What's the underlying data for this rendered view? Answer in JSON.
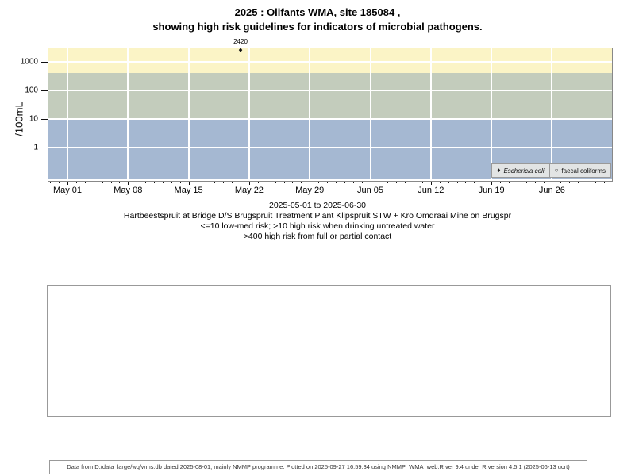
{
  "title": {
    "line1": "2025 : Olifants WMA, site 185084 ,",
    "line2": "showing high risk guidelines for indicators of microbial pathogens."
  },
  "chart_data": {
    "type": "scatter",
    "y_scale": "log10",
    "ylabel": "/100mL",
    "y_ticks": [
      1,
      10,
      100,
      1000
    ],
    "x_tick_labels": [
      "May 01",
      "May 08",
      "May 15",
      "May 22",
      "May 29",
      "Jun 05",
      "Jun 12",
      "Jun 19",
      "Jun 26"
    ],
    "x_minor_tick_interval_days": 1,
    "grid": "white lines on colored risk bands",
    "bands": [
      {
        "meaning": "high risk from full or partial contact",
        "from_value": 400,
        "to_value": 3200,
        "color": "#FBF4C6"
      },
      {
        "meaning": "high risk when drinking untreated water",
        "from_value": 10,
        "to_value": 400,
        "color": "#C3CCBC"
      },
      {
        "meaning": "low-med risk",
        "from_value": 0.07,
        "to_value": 10,
        "color": "#A5B8D2"
      }
    ],
    "series": [
      {
        "name": "Eschericia coli",
        "marker": "filled-diamond",
        "points": [
          {
            "days_after_first_tick": 20,
            "value": 2420,
            "label": "2420"
          }
        ]
      },
      {
        "name": "faecal coliforms",
        "marker": "open-circle",
        "points": []
      }
    ],
    "legend": {
      "position": "bottom-right",
      "entries": [
        {
          "marker_glyph": "♦",
          "label": "Eschericia coli"
        },
        {
          "marker_glyph": "○",
          "label": "faecal coliforms"
        }
      ]
    }
  },
  "caption": {
    "lines": [
      "2025-05-01 to 2025-06-30",
      "Hartbeestspruit at Bridge D/S Brugspruit Treatment Plant Klipspruit STW + Kro Omdraai Mine on Brugspr",
      "<=10 low-med risk; >10 high risk when drinking untreated water",
      ">400 high risk from full or partial contact"
    ]
  },
  "footer": {
    "text": "Data from D:/data_large/wq/wms.db dated 2025-08-01, mainly NMMP programme. Plotted on 2025-09-27 16:59:34 using NMMP_WMA_web.R ver 9.4 under R version 4.5.1 (2025-06-13 ucrt)"
  }
}
